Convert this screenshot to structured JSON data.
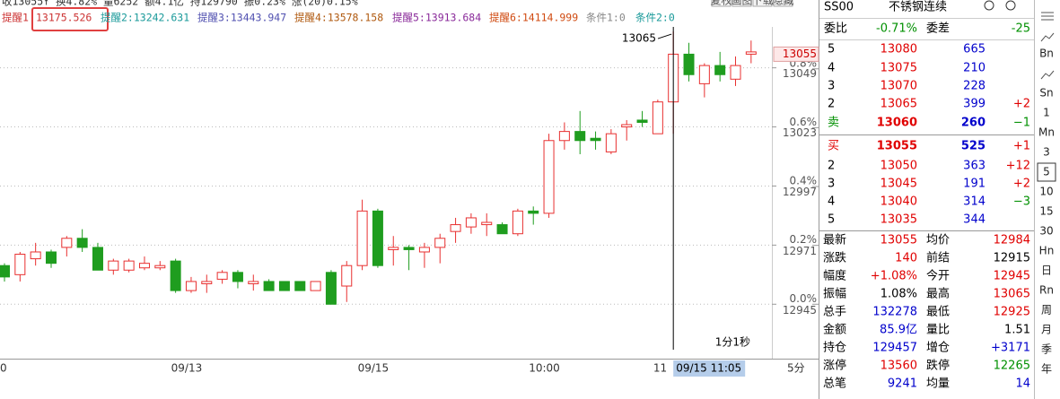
{
  "header": {
    "summary": "收13055↑ 换4.82% 量6252 额4.1亿 持129790 振0.23% 涨(20)0.15%",
    "reminders": [
      {
        "text": "提醒1",
        "color": "#cc3333"
      },
      {
        "text": "13175.526",
        "color": "#cc3333"
      },
      {
        "text": "提醒2:13242.631",
        "color": "#1a9a9a"
      },
      {
        "text": "提醒3:13443.947",
        "color": "#5050b0"
      },
      {
        "text": "提醒4:13578.158",
        "color": "#b05a10"
      },
      {
        "text": "提醒5:13913.684",
        "color": "#8a2a9a"
      },
      {
        "text": "提醒6:14114.999",
        "color": "#d04a10"
      },
      {
        "text": "条件1:0",
        "color": "#888888"
      },
      {
        "text": "条件2:0",
        "color": "#1a9a9a"
      }
    ],
    "buttons": [
      "复权",
      "画图",
      "下载",
      "隐藏"
    ]
  },
  "chart_data": {
    "type": "candlestick",
    "up_color": "#e83030",
    "down_color": "#1f9d1f",
    "categories": [
      "0",
      null,
      null,
      null,
      null,
      null,
      null,
      null,
      null,
      null,
      null,
      "09/13",
      null,
      null,
      null,
      null,
      null,
      null,
      null,
      null,
      null,
      null,
      null,
      "09/15",
      null,
      null,
      null,
      null,
      null,
      null,
      null,
      null,
      null,
      null,
      "10:00",
      null,
      null,
      null,
      null,
      null,
      null,
      null,
      "11",
      null,
      null,
      null,
      null,
      null,
      null
    ],
    "open": [
      12962,
      12958,
      12965,
      12968,
      12970,
      12974,
      12970,
      12960,
      12960,
      12961,
      12961,
      12964,
      12951,
      12954,
      12956,
      12959,
      12954,
      12955,
      12955,
      12955,
      12951,
      12959,
      12953,
      12962,
      12986,
      12969,
      12970,
      12968,
      12970,
      12977,
      12979,
      12980,
      12980,
      12976,
      12986,
      12985,
      13017,
      13021,
      13018,
      13012,
      13023,
      13026,
      13020,
      13034,
      13055,
      13042,
      13050,
      13044,
      13055
    ],
    "high": [
      12963,
      12968,
      12972,
      12969,
      12975,
      12978,
      12972,
      12965,
      12965,
      12966,
      12964,
      12965,
      12957,
      12958,
      12960,
      12960,
      12958,
      12956,
      12955,
      12955,
      12955,
      12960,
      12964,
      12991,
      12987,
      12975,
      12971,
      12972,
      12976,
      12983,
      12985,
      12985,
      12981,
      12987,
      12988,
      13020,
      13025,
      13030,
      13021,
      13022,
      13026,
      13030,
      13035,
      13065,
      13060,
      13051,
      13056,
      13054,
      13061
    ],
    "low": [
      12955,
      12955,
      12962,
      12961,
      12966,
      12968,
      12960,
      12958,
      12959,
      12960,
      12960,
      12950,
      12950,
      12950,
      12954,
      12952,
      12951,
      12951,
      12951,
      12951,
      12951,
      12945,
      12946,
      12960,
      12961,
      12962,
      12960,
      12961,
      12963,
      12972,
      12976,
      12975,
      12976,
      12975,
      12980,
      12983,
      13013,
      13011,
      13013,
      13011,
      13017,
      13023,
      13020,
      13020,
      13043,
      13036,
      13043,
      13041,
      13051
    ],
    "close": [
      12957,
      12967,
      12968,
      12963,
      12974,
      12970,
      12960,
      12964,
      12964,
      12963,
      12962,
      12951,
      12955,
      12955,
      12959,
      12955,
      12955,
      12951,
      12951,
      12951,
      12955,
      12945,
      12962,
      12986,
      12962,
      12970,
      12969,
      12970,
      12974,
      12980,
      12983,
      12981,
      12976,
      12986,
      12985,
      13017,
      13021,
      13017,
      13017,
      13020,
      13024,
      13025,
      13034,
      13055,
      13046,
      13050,
      13046,
      13050,
      13056
    ],
    "ylim": [
      12925,
      13067
    ],
    "yticks": [
      12945,
      12971,
      12997,
      13023,
      13049
    ],
    "y2lim": [
      -0.1545,
      0.9425
    ],
    "y2ticks": [
      {
        "value": 0,
        "label": "0.0%"
      },
      {
        "value": 0.2,
        "label": "0.2%"
      },
      {
        "value": 0.4,
        "label": "0.4%"
      },
      {
        "value": 0.6,
        "label": "0.6%"
      },
      {
        "value": 0.8,
        "label": "0.8%"
      }
    ],
    "grid": true,
    "last_price": 13055,
    "max_label": 13065,
    "crosshair": {
      "label": "09/15 11:05",
      "duration": "1分1秒"
    },
    "period": "5分"
  },
  "quote": {
    "symbol": "SS00",
    "name": "不锈钢连续",
    "ratio": {
      "label": "委比",
      "value": "-0.71%",
      "label2": "委差",
      "value2": "-25"
    },
    "asks": [
      {
        "level": "5",
        "price": "13080",
        "volume": "665"
      },
      {
        "level": "4",
        "price": "13075",
        "volume": "210"
      },
      {
        "level": "3",
        "price": "13070",
        "volume": "228"
      },
      {
        "level": "2",
        "price": "13065",
        "volume": "399",
        "change": "+2"
      },
      {
        "level": "卖",
        "price": "13060",
        "volume": "260",
        "change": "−1"
      }
    ],
    "bids": [
      {
        "level": "买",
        "price": "13055",
        "volume": "525",
        "change": "+1"
      },
      {
        "level": "2",
        "price": "13050",
        "volume": "363",
        "change": "+12"
      },
      {
        "level": "3",
        "price": "13045",
        "volume": "191",
        "change": "+2"
      },
      {
        "level": "4",
        "price": "13040",
        "volume": "314",
        "change": "−3"
      },
      {
        "level": "5",
        "price": "13035",
        "volume": "344"
      }
    ],
    "stats": [
      [
        {
          "label": "最新",
          "value": "13055",
          "color": "#e00000"
        },
        {
          "label": "均价",
          "value": "12984",
          "color": "#e00000"
        }
      ],
      [
        {
          "label": "涨跌",
          "value": "140",
          "color": "#e00000"
        },
        {
          "label": "前结",
          "value": "12915",
          "color": "#000000"
        }
      ],
      [
        {
          "label": "幅度",
          "value": "+1.08%",
          "color": "#e00000"
        },
        {
          "label": "今开",
          "value": "12945",
          "color": "#e00000"
        }
      ],
      [
        {
          "label": "振幅",
          "value": "1.08%",
          "color": "#000000"
        },
        {
          "label": "最高",
          "value": "13065",
          "color": "#e00000"
        }
      ],
      [
        {
          "label": "总手",
          "value": "132278",
          "color": "#0000cc"
        },
        {
          "label": "最低",
          "value": "12925",
          "color": "#e00000"
        }
      ],
      [
        {
          "label": "金额",
          "value": "85.9亿",
          "color": "#0000cc"
        },
        {
          "label": "量比",
          "value": "1.51",
          "color": "#000000"
        }
      ],
      [
        {
          "label": "持仓",
          "value": "129457",
          "color": "#0000cc"
        },
        {
          "label": "增仓",
          "value": "+3171",
          "color": "#0000cc"
        }
      ],
      [
        {
          "label": "涨停",
          "value": "13560",
          "color": "#e00000"
        },
        {
          "label": "跌停",
          "value": "12265",
          "color": "#009000"
        }
      ],
      [
        {
          "label": "总笔",
          "value": "9241",
          "color": "#0000cc"
        },
        {
          "label": "均量",
          "value": "14",
          "color": "#0000cc"
        }
      ]
    ]
  },
  "toolbar": [
    "Bn",
    "Sn",
    "1",
    "Mn",
    "3",
    "5",
    "10",
    "15",
    "30",
    "Hn",
    "日",
    "Rn",
    "周",
    "月",
    "季",
    "年"
  ]
}
